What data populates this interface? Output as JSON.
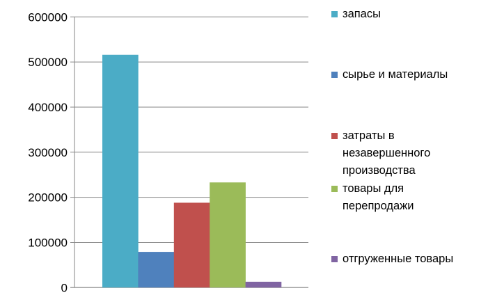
{
  "chart_data": {
    "type": "bar",
    "title": "",
    "xlabel": "",
    "ylabel": "",
    "ylim": [
      0,
      600000
    ],
    "yticks": [
      0,
      100000,
      200000,
      300000,
      400000,
      500000,
      600000
    ],
    "ytick_labels": [
      "0",
      "100000",
      "200000",
      "300000",
      "400000",
      "500000",
      "600000"
    ],
    "grid": true,
    "legend_position": "right",
    "categories": [
      ""
    ],
    "series": [
      {
        "name": "запасы",
        "values": [
          516000
        ],
        "color": "#4BACC6"
      },
      {
        "name": "сырье и материалы",
        "values": [
          79000
        ],
        "color": "#4F81BD"
      },
      {
        "name": "затраты в незавершенного производства",
        "values": [
          188000
        ],
        "color": "#C0504D"
      },
      {
        "name": "товары для перепродажи",
        "values": [
          233000
        ],
        "color": "#9BBB59"
      },
      {
        "name": "отгруженные товары",
        "values": [
          12800
        ],
        "color": "#8064A2"
      }
    ]
  }
}
